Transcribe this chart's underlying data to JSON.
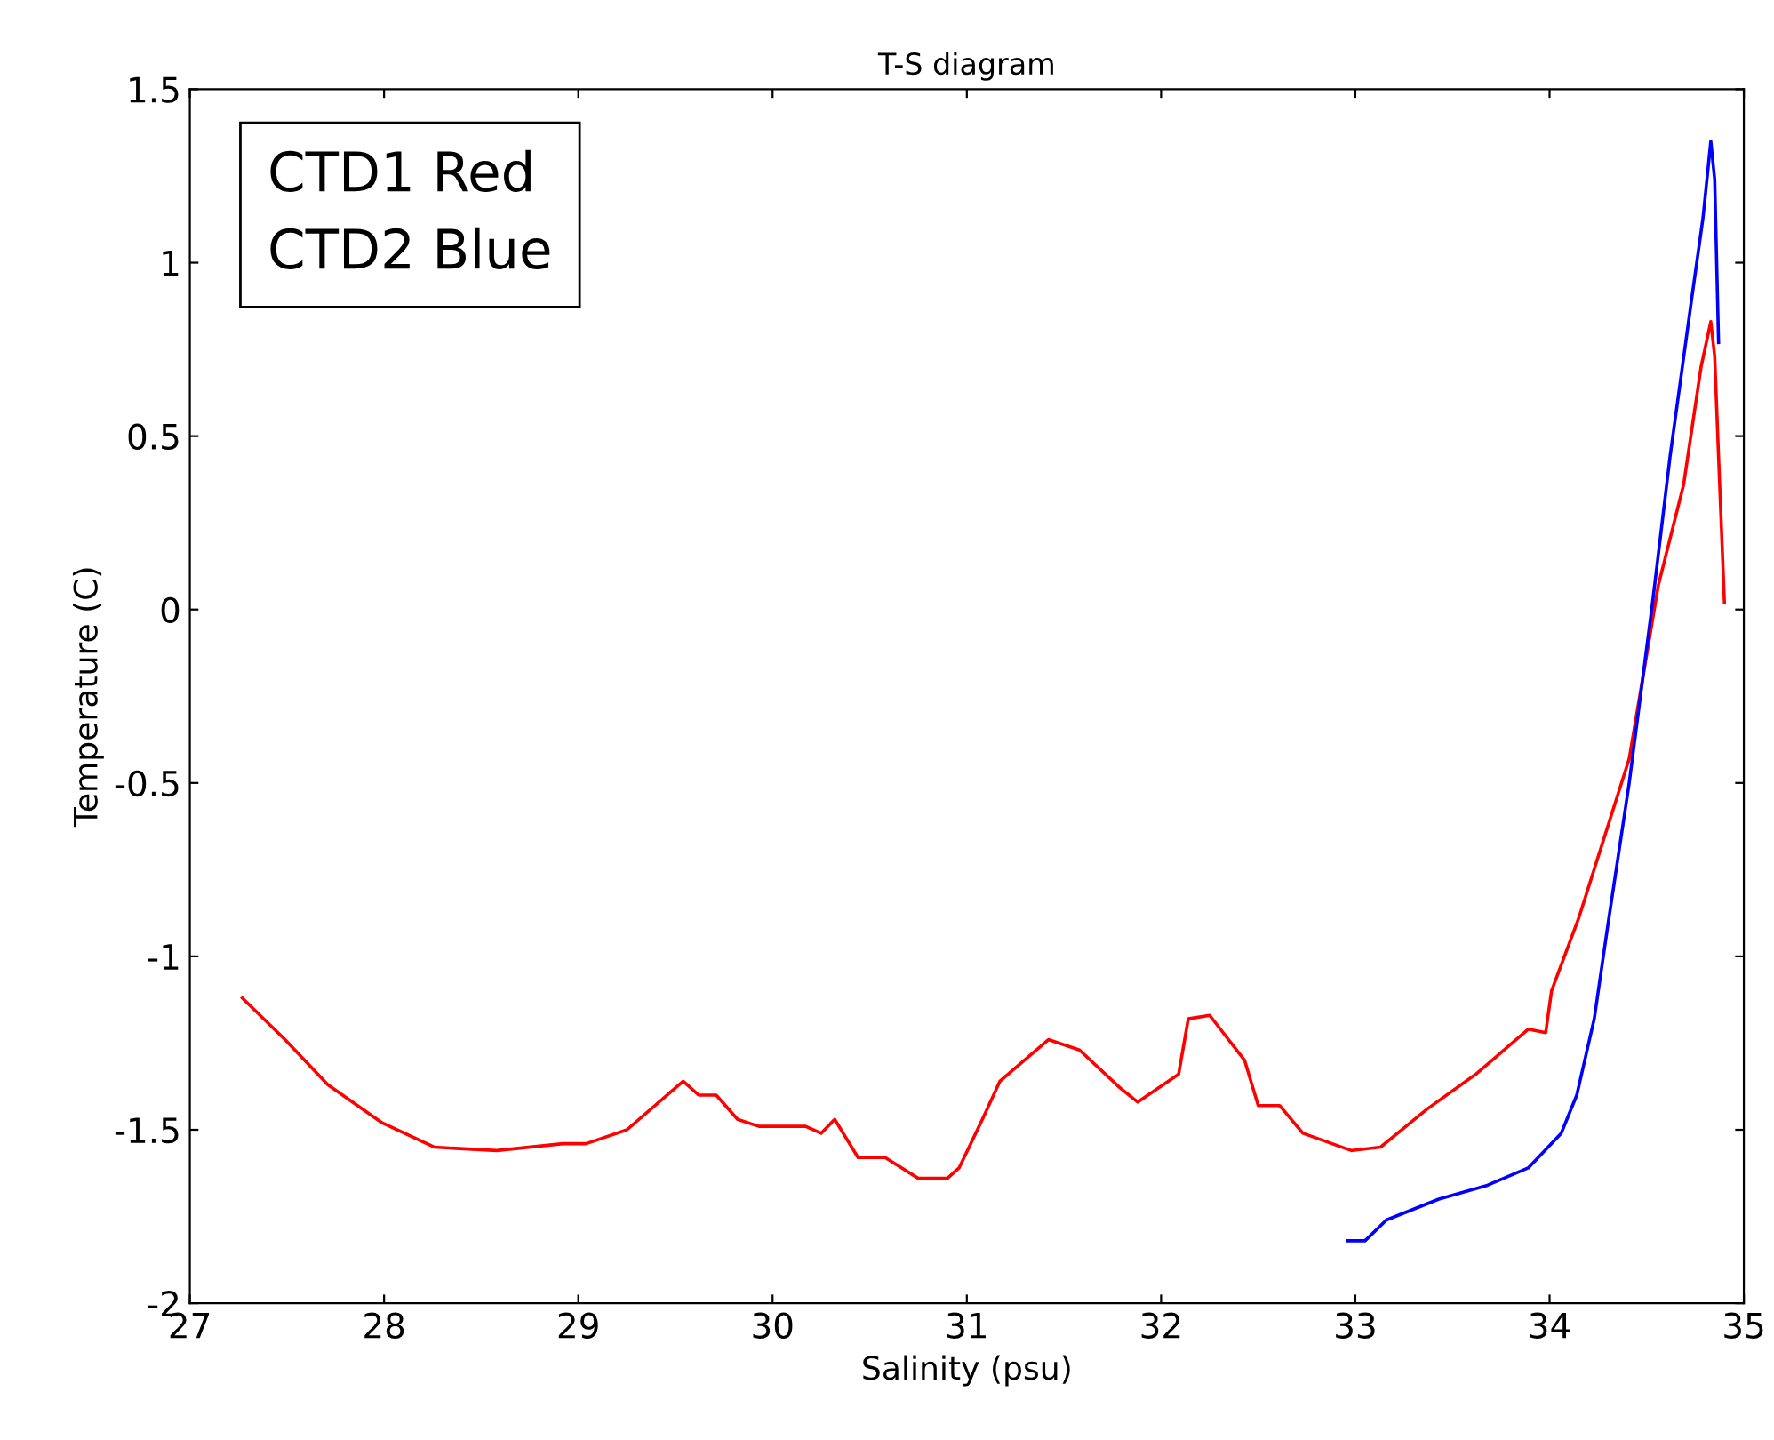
{
  "chart_data": {
    "type": "line",
    "title": "T-S diagram",
    "xlabel": "Salinity (psu)",
    "ylabel": "Temperature (C)",
    "annotations": [
      "CTD1 Red\nCTD2 Blue"
    ],
    "xlim": [
      27,
      35
    ],
    "xticks": [
      27,
      28,
      29,
      30,
      31,
      32,
      33,
      34,
      35
    ],
    "ylim": [
      -2,
      1.5
    ],
    "yticks": [
      -2,
      -1.5,
      -1,
      -0.5,
      0,
      0.5,
      1,
      1.5
    ],
    "grid": false,
    "marker": "none",
    "line_style": "solid",
    "series": [
      {
        "color": "#ff0000",
        "x": [
          27.27,
          27.49,
          27.71,
          27.99,
          28.26,
          28.58,
          28.92,
          29.04,
          29.25,
          29.54,
          29.62,
          29.71,
          29.82,
          29.93,
          30.17,
          30.25,
          30.32,
          30.44,
          30.58,
          30.75,
          30.9,
          30.96,
          31.08,
          31.17,
          31.42,
          31.58,
          31.79,
          31.88,
          32.09,
          32.14,
          32.25,
          32.43,
          32.5,
          32.61,
          32.73,
          32.98,
          33.13,
          33.37,
          33.62,
          33.89,
          33.98,
          34.01,
          34.15,
          34.41,
          34.56,
          34.69,
          34.78,
          34.83,
          34.85,
          34.87,
          34.9
        ],
        "values": [
          -1.12,
          -1.24,
          -1.37,
          -1.48,
          -1.55,
          -1.56,
          -1.54,
          -1.54,
          -1.5,
          -1.36,
          -1.4,
          -1.4,
          -1.47,
          -1.49,
          -1.49,
          -1.51,
          -1.47,
          -1.58,
          -1.58,
          -1.64,
          -1.64,
          -1.61,
          -1.47,
          -1.36,
          -1.24,
          -1.27,
          -1.38,
          -1.42,
          -1.34,
          -1.18,
          -1.17,
          -1.3,
          -1.43,
          -1.43,
          -1.51,
          -1.56,
          -1.55,
          -1.44,
          -1.34,
          -1.21,
          -1.22,
          -1.1,
          -0.89,
          -0.43,
          0.07,
          0.36,
          0.7,
          0.83,
          0.73,
          0.44,
          0.02
        ]
      },
      {
        "color": "#0000ff",
        "x": [
          32.96,
          33.05,
          33.16,
          33.43,
          33.68,
          33.89,
          34.06,
          34.14,
          34.23,
          34.3,
          34.41,
          34.53,
          34.62,
          34.73,
          34.79,
          34.83,
          34.85,
          34.87
        ],
        "values": [
          -1.82,
          -1.82,
          -1.76,
          -1.7,
          -1.66,
          -1.61,
          -1.51,
          -1.4,
          -1.18,
          -0.91,
          -0.5,
          0.02,
          0.44,
          0.89,
          1.13,
          1.35,
          1.24,
          0.77
        ]
      }
    ]
  }
}
